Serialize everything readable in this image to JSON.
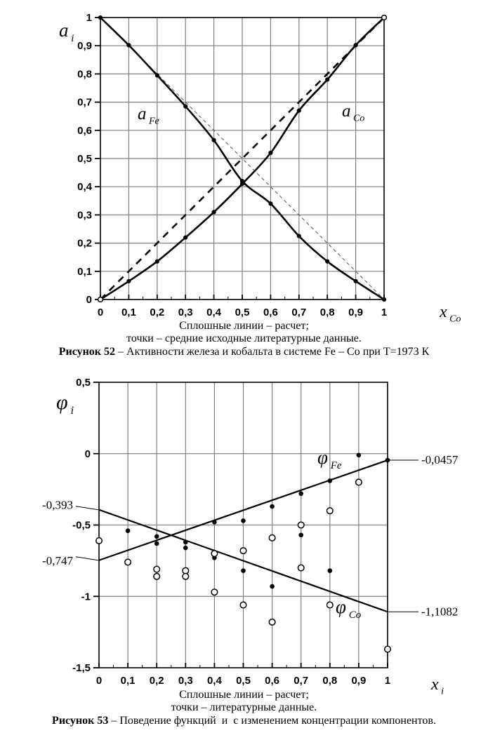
{
  "captions": {
    "fig52": {
      "note1": "Сплошные линии – расчет;",
      "note2": "точки – средние исходные литературные данные.",
      "label": "Рисунок 52",
      "rest": " – Активности железа и кобальта в системе Fe – Co при Т=1973 К"
    },
    "fig53": {
      "note1": "Сплошные линии – расчет;",
      "note2": "точки – литературные данные.",
      "label": "Рисунок 53",
      "rest": " – Поведение функций  и  с изменением концентрации компонентов."
    }
  },
  "colors": {
    "ink": "#000000",
    "grid": "#808080",
    "thin_dash": "#555555",
    "background": "#ffffff"
  },
  "chart_data": [
    {
      "id": "fig52",
      "type": "line",
      "title": "Активности железа и кобальта в системе Fe – Co при Т=1973 К",
      "xlabel": {
        "main": "x",
        "sub": "Co"
      },
      "ylabel": {
        "main": "a",
        "sub": "i"
      },
      "xlim": [
        0,
        1
      ],
      "ylim": [
        0,
        1
      ],
      "grid": true,
      "xtick_labels": [
        "0",
        "0,1",
        "0,2",
        "0,3",
        "0,4",
        "0,5",
        "0,6",
        "0,7",
        "0,8",
        "0,9",
        "1"
      ],
      "ytick_labels": [
        "0",
        "0,1",
        "0,2",
        "0,3",
        "0,4",
        "0,5",
        "0,6",
        "0,7",
        "0,8",
        "0,9",
        "1"
      ],
      "x": [
        0,
        0.1,
        0.2,
        0.3,
        0.4,
        0.5,
        0.6,
        0.7,
        0.8,
        0.9,
        1
      ],
      "series": [
        {
          "name": "a_Fe расчет (сплошная)",
          "label": {
            "main": "a",
            "sub": "Fe"
          },
          "line": "solid",
          "marker": "filled",
          "values": [
            1,
            0.902,
            0.795,
            0.685,
            0.565,
            0.42,
            0.34,
            0.225,
            0.135,
            0.065,
            0
          ]
        },
        {
          "name": "a_Co расчет (сплошная)",
          "label": {
            "main": "a",
            "sub": "Co"
          },
          "line": "solid",
          "marker": "filled",
          "values": [
            0,
            0.065,
            0.135,
            0.22,
            0.31,
            0.41,
            0.52,
            0.67,
            0.78,
            0.902,
            1
          ]
        },
        {
          "name": "идеальная линия a_Co (y = x)",
          "line": "dashed-bold",
          "marker": "none",
          "endpoints": [
            [
              0,
              0
            ],
            [
              1,
              1
            ]
          ]
        },
        {
          "name": "идеальная линия a_Fe (y = 1 - x)",
          "line": "dashed-thin",
          "marker": "none",
          "endpoints": [
            [
              0,
              1
            ],
            [
              1,
              0
            ]
          ]
        }
      ],
      "open_corner_markers": [
        [
          0,
          0
        ],
        [
          1,
          1
        ]
      ]
    },
    {
      "id": "fig53",
      "type": "scatter",
      "title": "Поведение функций с изменением концентрации компонентов",
      "xlabel": {
        "main": "x",
        "sub": "i"
      },
      "ylabel": {
        "main": "φ",
        "sub": "i"
      },
      "xlim": [
        0,
        1
      ],
      "ylim": [
        -1.5,
        0.5
      ],
      "grid": true,
      "xtick_labels": [
        "0",
        "0,1",
        "0,2",
        "0,3",
        "0,4",
        "0,5",
        "0,6",
        "0,7",
        "0,8",
        "0,9",
        "1"
      ],
      "ytick_labels": [
        "0,5",
        "0",
        "-0,5",
        "-1",
        "-1,5"
      ],
      "yticks": [
        0.5,
        0,
        -0.5,
        -1,
        -1.5
      ],
      "lines": [
        {
          "name": "φ_Fe расчет",
          "label": {
            "main": "φ",
            "sub": "Fe"
          },
          "from": [
            0,
            -0.747
          ],
          "to": [
            1,
            -0.0457
          ]
        },
        {
          "name": "φ_Co расчет",
          "label": {
            "main": "φ",
            "sub": "Co"
          },
          "from": [
            0,
            -0.393
          ],
          "to": [
            1,
            -1.1082
          ]
        }
      ],
      "annotations": [
        {
          "text": "-0,393",
          "side": "left",
          "target_value": -0.393
        },
        {
          "text": "-0,747",
          "side": "left",
          "target_value": -0.747
        },
        {
          "text": "-0,0457",
          "side": "right",
          "target_value": -0.0457
        },
        {
          "text": "-1,1082",
          "side": "right",
          "target_value": -1.1082
        }
      ],
      "points_filled": [
        [
          0.1,
          -0.54
        ],
        [
          0.2,
          -0.58
        ],
        [
          0.2,
          -0.63
        ],
        [
          0.3,
          -0.62
        ],
        [
          0.3,
          -0.66
        ],
        [
          0.4,
          -0.48
        ],
        [
          0.4,
          -0.73
        ],
        [
          0.5,
          -0.47
        ],
        [
          0.5,
          -0.82
        ],
        [
          0.6,
          -0.37
        ],
        [
          0.6,
          -0.93
        ],
        [
          0.7,
          -0.28
        ],
        [
          0.7,
          -0.57
        ],
        [
          0.8,
          -0.19
        ],
        [
          0.8,
          -0.82
        ],
        [
          0.9,
          -0.01
        ],
        [
          1,
          -0.0457
        ]
      ],
      "points_open": [
        [
          0,
          -0.61
        ],
        [
          0.1,
          -0.76
        ],
        [
          0.2,
          -0.81
        ],
        [
          0.2,
          -0.86
        ],
        [
          0.3,
          -0.82
        ],
        [
          0.3,
          -0.86
        ],
        [
          0.4,
          -0.7
        ],
        [
          0.4,
          -0.97
        ],
        [
          0.5,
          -0.68
        ],
        [
          0.5,
          -1.06
        ],
        [
          0.6,
          -0.59
        ],
        [
          0.6,
          -1.18
        ],
        [
          0.7,
          -0.5
        ],
        [
          0.7,
          -0.8
        ],
        [
          0.8,
          -0.4
        ],
        [
          0.8,
          -1.06
        ],
        [
          0.9,
          -0.2
        ],
        [
          1,
          -1.37
        ]
      ]
    }
  ]
}
